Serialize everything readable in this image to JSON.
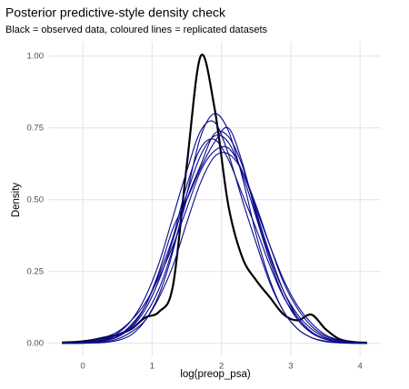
{
  "chart_data": {
    "type": "density",
    "title": "Posterior predictive-style density check",
    "subtitle": "Black = observed data, coloured lines = replicated datasets",
    "x_label": "log(preop_psa)",
    "y_label": "Density",
    "xlim": [
      -0.5,
      4.3
    ],
    "ylim": [
      -0.045,
      1.05
    ],
    "xticks": [
      0,
      1,
      2,
      3,
      4
    ],
    "yticks": [
      {
        "value": 0,
        "label": "0.00"
      },
      {
        "value": 0.25,
        "label": "0.25"
      },
      {
        "value": 0.5,
        "label": "0.50"
      },
      {
        "value": 0.75,
        "label": "0.75"
      },
      {
        "value": 1,
        "label": "1.00"
      }
    ],
    "grid": true,
    "x": [
      -0.3,
      -0.1,
      0.1,
      0.3,
      0.5,
      0.7,
      0.9,
      1.1,
      1.3,
      1.5,
      1.7,
      1.9,
      2.1,
      2.3,
      2.5,
      2.7,
      2.9,
      3.1,
      3.3,
      3.5,
      3.7,
      3.9,
      4.1
    ],
    "observed": {
      "color": "#000000",
      "values": [
        0.003,
        0.005,
        0.01,
        0.02,
        0.03,
        0.05,
        0.09,
        0.11,
        0.2,
        0.62,
        1.0,
        0.82,
        0.48,
        0.3,
        0.22,
        0.16,
        0.1,
        0.08,
        0.1,
        0.05,
        0.015,
        0.005,
        0.002
      ]
    },
    "series": [
      {
        "color": "#0a0a8c",
        "values": [
          0.0002,
          0.0007,
          0.0025,
          0.008,
          0.022,
          0.055,
          0.118,
          0.22,
          0.36,
          0.52,
          0.654,
          0.722,
          0.7,
          0.59,
          0.44,
          0.287,
          0.163,
          0.082,
          0.036,
          0.014,
          0.005,
          0.0013,
          0.0004
        ]
      },
      {
        "color": "#0a0a8c",
        "values": [
          0.001,
          0.002,
          0.005,
          0.015,
          0.035,
          0.08,
          0.16,
          0.28,
          0.44,
          0.6,
          0.74,
          0.77,
          0.66,
          0.5,
          0.35,
          0.21,
          0.11,
          0.05,
          0.02,
          0.008,
          0.003,
          0.001,
          0.0
        ]
      },
      {
        "color": "#0a0a8c",
        "values": [
          0.0,
          0.0,
          0.002,
          0.005,
          0.015,
          0.04,
          0.08,
          0.16,
          0.27,
          0.42,
          0.56,
          0.65,
          0.66,
          0.6,
          0.48,
          0.34,
          0.21,
          0.12,
          0.06,
          0.025,
          0.01,
          0.003,
          0.001
        ]
      },
      {
        "color": "#0a0a8c",
        "values": [
          0.001,
          0.003,
          0.008,
          0.02,
          0.04,
          0.08,
          0.14,
          0.23,
          0.34,
          0.47,
          0.6,
          0.67,
          0.68,
          0.6,
          0.47,
          0.34,
          0.22,
          0.13,
          0.07,
          0.03,
          0.012,
          0.004,
          0.001
        ]
      },
      {
        "color": "#0a0a8c",
        "values": [
          0.0,
          0.0,
          0.001,
          0.003,
          0.01,
          0.03,
          0.08,
          0.17,
          0.32,
          0.52,
          0.72,
          0.8,
          0.74,
          0.58,
          0.38,
          0.22,
          0.11,
          0.05,
          0.02,
          0.006,
          0.002,
          0.0,
          0.0
        ]
      },
      {
        "color": "#0a0a8c",
        "values": [
          0.001,
          0.002,
          0.006,
          0.012,
          0.03,
          0.06,
          0.13,
          0.25,
          0.4,
          0.5,
          0.61,
          0.7,
          0.75,
          0.63,
          0.45,
          0.3,
          0.18,
          0.1,
          0.05,
          0.02,
          0.007,
          0.002,
          0.0
        ]
      },
      {
        "color": "#0a0a8c",
        "values": [
          0.0,
          0.001,
          0.004,
          0.01,
          0.025,
          0.065,
          0.13,
          0.24,
          0.37,
          0.55,
          0.68,
          0.71,
          0.64,
          0.52,
          0.4,
          0.27,
          0.16,
          0.09,
          0.04,
          0.015,
          0.005,
          0.001,
          0.0
        ]
      },
      {
        "color": "#0a0a8c",
        "values": [
          0.001,
          0.002,
          0.004,
          0.01,
          0.03,
          0.05,
          0.1,
          0.19,
          0.33,
          0.5,
          0.62,
          0.73,
          0.72,
          0.62,
          0.46,
          0.31,
          0.18,
          0.09,
          0.04,
          0.016,
          0.006,
          0.002,
          0.0
        ]
      }
    ]
  }
}
